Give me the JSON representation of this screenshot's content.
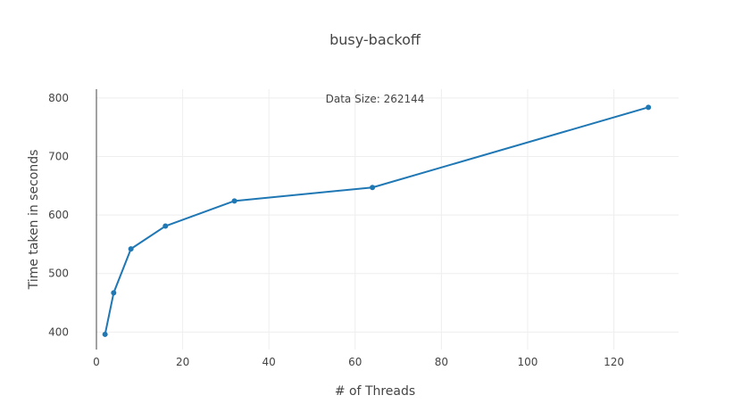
{
  "chart_data": {
    "type": "line",
    "title": "busy-backoff",
    "xlabel": "# of Threads",
    "ylabel": "Time taken in seconds",
    "annotation": "Data Size: 262144",
    "xlim": [
      0,
      135
    ],
    "ylim": [
      370,
      815
    ],
    "x_ticks": [
      0,
      20,
      40,
      60,
      80,
      100,
      120
    ],
    "y_ticks": [
      400,
      500,
      600,
      700,
      800
    ],
    "grid": true,
    "series": [
      {
        "x": [
          2,
          4,
          8,
          16,
          32,
          64,
          128
        ],
        "y": [
          396,
          467,
          542,
          581,
          624,
          647,
          784
        ],
        "color": "#1f77b4"
      }
    ]
  }
}
